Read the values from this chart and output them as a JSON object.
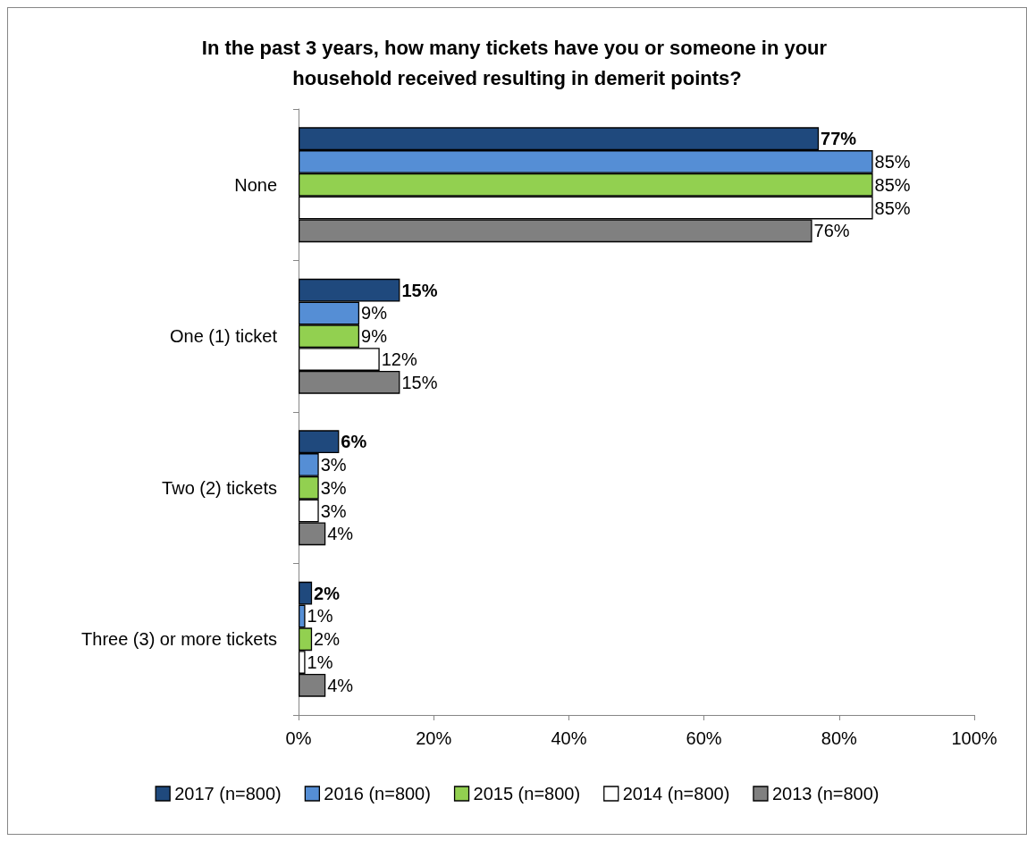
{
  "chart_data": {
    "type": "bar",
    "orientation": "horizontal",
    "title": "In the past 3 years, how many tickets have you or someone in your household received resulting in demerit points?",
    "categories": [
      "None",
      "One (1) ticket",
      "Two (2) tickets",
      "Three (3) or more tickets"
    ],
    "series": [
      {
        "name": "2017 (n=800)",
        "color": "#1f497d",
        "values": [
          77,
          15,
          6,
          2
        ],
        "value_labels": [
          "77%",
          "15%",
          "6%",
          "2%"
        ]
      },
      {
        "name": "2016 (n=800)",
        "color": "#558ed5",
        "values": [
          85,
          9,
          3,
          1
        ],
        "value_labels": [
          "85%",
          "9%",
          "3%",
          "1%"
        ]
      },
      {
        "name": "2015 (n=800)",
        "color": "#92d050",
        "values": [
          85,
          9,
          3,
          2
        ],
        "value_labels": [
          "85%",
          "9%",
          "3%",
          "2%"
        ]
      },
      {
        "name": "2014 (n=800)",
        "color": "#ffffff",
        "values": [
          85,
          12,
          3,
          1
        ],
        "value_labels": [
          "85%",
          "12%",
          "3%",
          "1%"
        ]
      },
      {
        "name": "2013 (n=800)",
        "color": "#808080",
        "values": [
          76,
          15,
          4,
          4
        ],
        "value_labels": [
          "76%",
          "15%",
          "4%",
          "4%"
        ]
      }
    ],
    "xlim": [
      0,
      100
    ],
    "xticks": [
      {
        "value": 0,
        "label": "0%"
      },
      {
        "value": 20,
        "label": "20%"
      },
      {
        "value": 40,
        "label": "40%"
      },
      {
        "value": 60,
        "label": "60%"
      },
      {
        "value": 80,
        "label": "80%"
      },
      {
        "value": 100,
        "label": "100%"
      }
    ],
    "grid": false,
    "legend": "bottom"
  }
}
